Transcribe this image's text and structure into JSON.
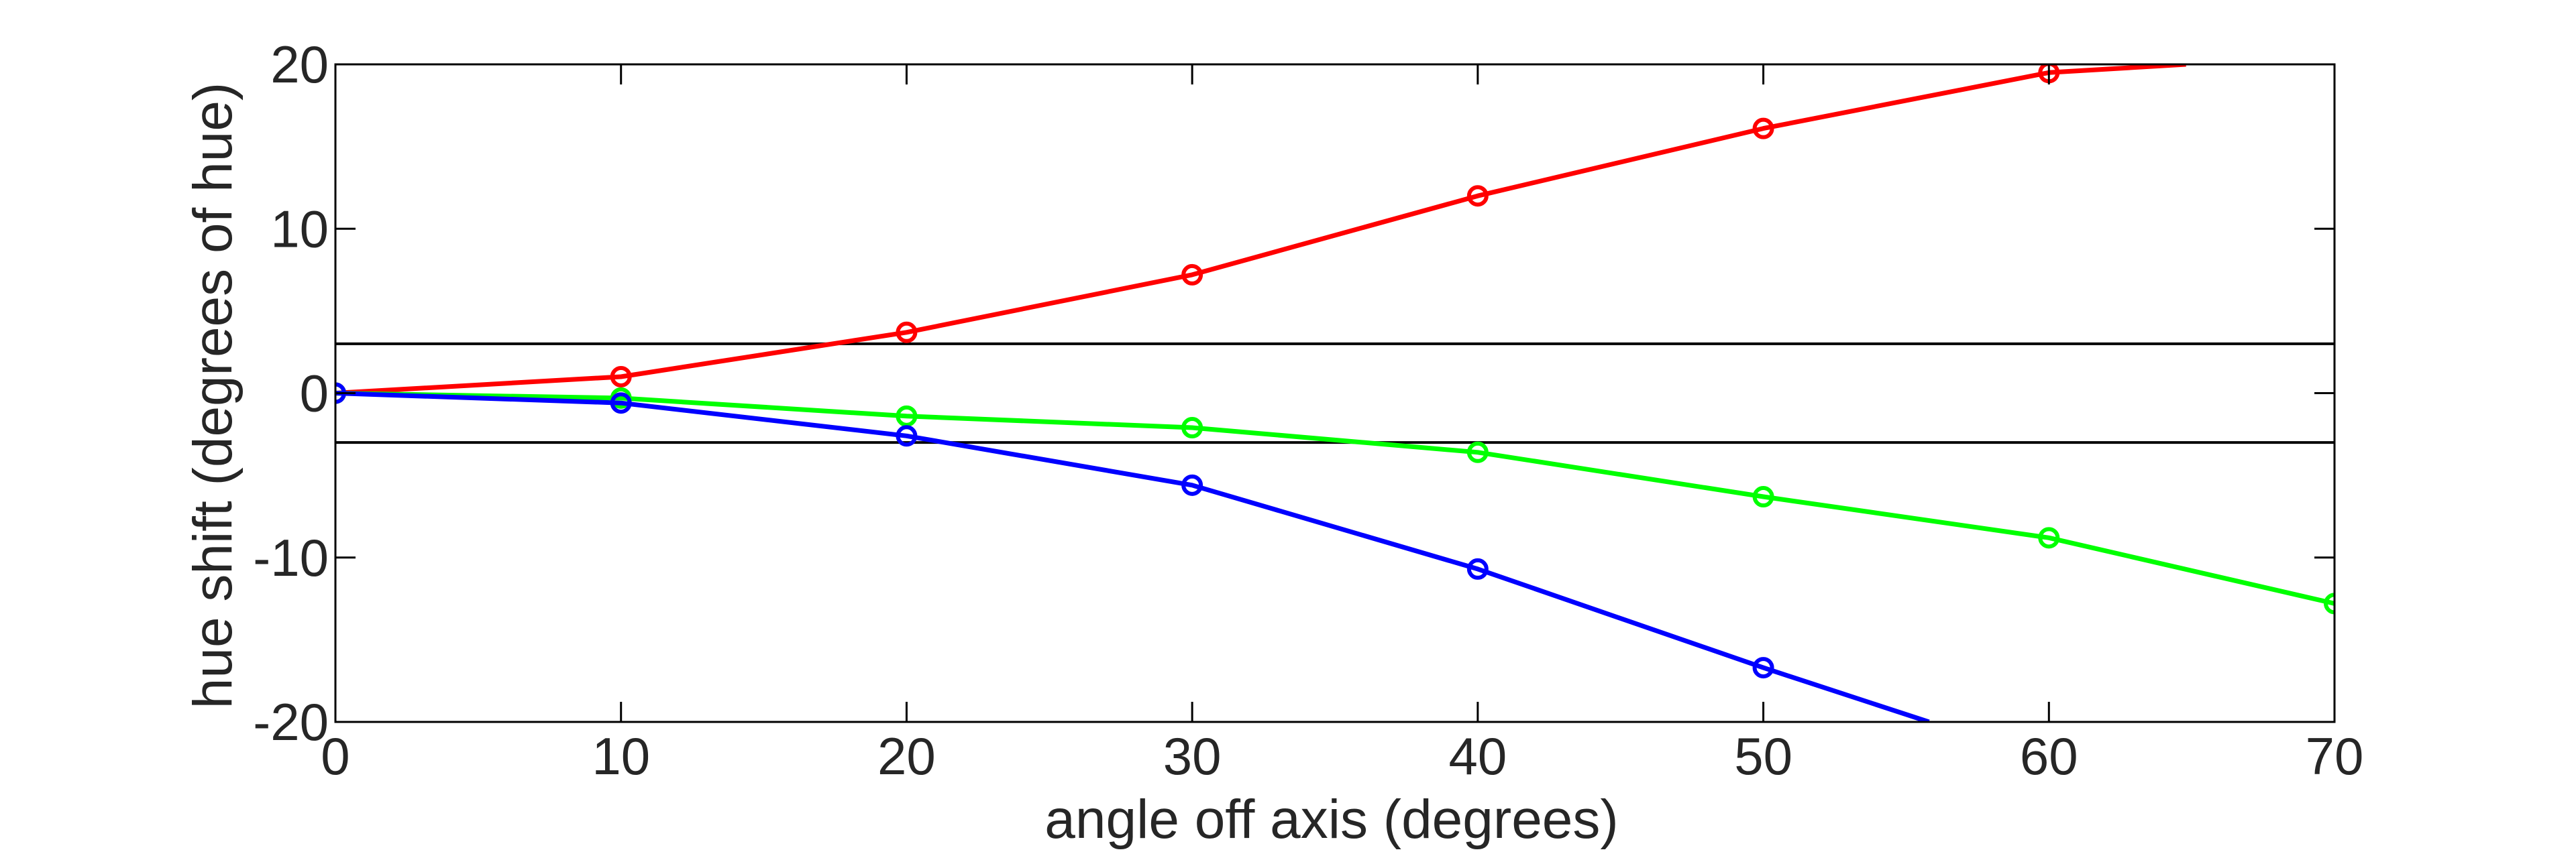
{
  "chart_data": {
    "type": "line",
    "title": "",
    "xlabel": "angle off axis (degrees)",
    "ylabel": "hue shift (degrees of hue)",
    "xlim": [
      0,
      70
    ],
    "ylim": [
      -20,
      20
    ],
    "xticks": [
      0,
      10,
      20,
      30,
      40,
      50,
      60,
      70
    ],
    "yticks": [
      -20,
      -10,
      0,
      10,
      20
    ],
    "xtick_labels": [
      "0",
      "10",
      "20",
      "30",
      "40",
      "50",
      "60",
      "70"
    ],
    "ytick_labels": [
      "-20",
      "-10",
      "0",
      "10",
      "20"
    ],
    "grid": false,
    "reference_lines": [
      3,
      -3
    ],
    "series": [
      {
        "color": "#ff0000",
        "x": [
          0,
          10,
          20,
          30,
          40,
          50,
          60,
          64.8
        ],
        "y": [
          0,
          1.0,
          3.7,
          7.2,
          12.0,
          16.1,
          19.5,
          20.0
        ],
        "markers": [
          0,
          10,
          20,
          30,
          40,
          50,
          60
        ]
      },
      {
        "color": "#00ff00",
        "x": [
          0,
          10,
          20,
          30,
          40,
          50,
          60,
          70
        ],
        "y": [
          0,
          -0.3,
          -1.4,
          -2.1,
          -3.6,
          -6.3,
          -8.8,
          -12.8
        ],
        "markers": [
          0,
          10,
          20,
          30,
          40,
          50,
          60,
          70
        ]
      },
      {
        "color": "#0000ff",
        "x": [
          0,
          10,
          20,
          30,
          40,
          50,
          55.8
        ],
        "y": [
          0,
          -0.6,
          -2.6,
          -5.6,
          -10.7,
          -16.7,
          -20.0
        ],
        "markers": [
          0,
          10,
          20,
          30,
          40,
          50
        ]
      }
    ]
  }
}
